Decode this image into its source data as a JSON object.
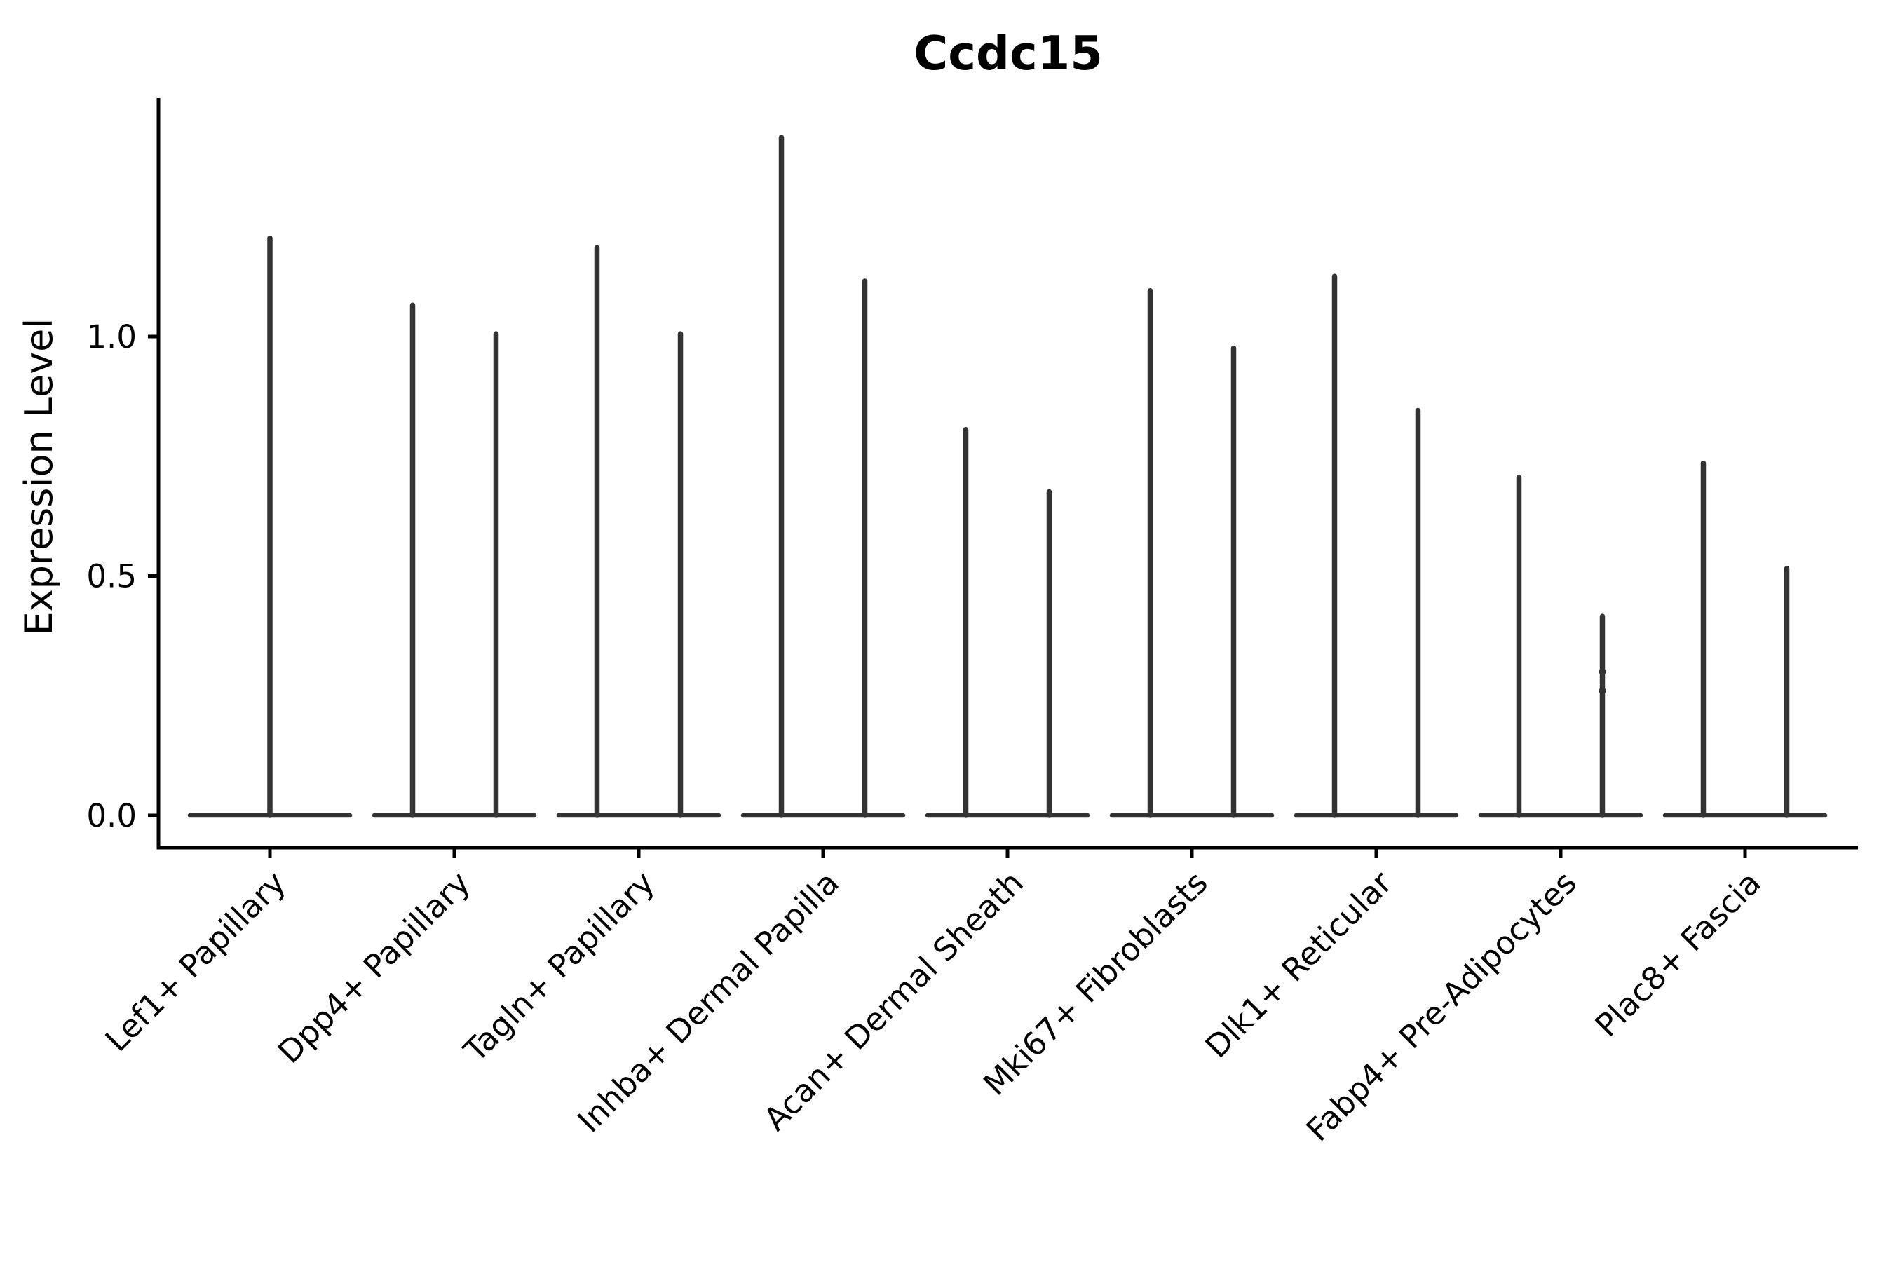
{
  "chart_data": {
    "type": "violin",
    "title": "Ccdc15",
    "ylabel": "Expression Level",
    "xlabel": "",
    "ytick_labels": [
      "0.0",
      "0.5",
      "1.0"
    ],
    "ytick_values": [
      0.0,
      0.5,
      1.0
    ],
    "ylim": [
      -0.067,
      1.5
    ],
    "grid": false,
    "legend": null,
    "violin_color": "#333333",
    "axis_color": "#000000",
    "categories": [
      "Lef1+ Papillary",
      "Dpp4+ Papillary",
      "Tagln+ Papillary",
      "Inhba+ Dermal Papilla",
      "Acan+ Dermal Sheath",
      "Mki67+ Fibroblasts",
      "Dlk1+ Reticular",
      "Fabp4+ Pre-Adipocytes",
      "Plac8+ Fascia"
    ],
    "violin_shape_note": "Seurat-style violins: wide flat bulk at expression 0 with an extremely thin tail rising to the max expression; category 1 has a single full-width violin, categories 2-9 each have two side-by-side half-width violins.",
    "max_expression_per_violin": [
      [
        1.21
      ],
      [
        1.07,
        1.01
      ],
      [
        1.19,
        1.01
      ],
      [
        1.42,
        1.12
      ],
      [
        0.81,
        0.68
      ],
      [
        1.1,
        0.98
      ],
      [
        1.13,
        0.85
      ],
      [
        0.71,
        0.42
      ],
      [
        0.74,
        0.52
      ]
    ],
    "tail_knots": [
      {
        "category_index": 7,
        "violin_index": 1,
        "values": [
          0.3,
          0.26
        ]
      }
    ]
  }
}
